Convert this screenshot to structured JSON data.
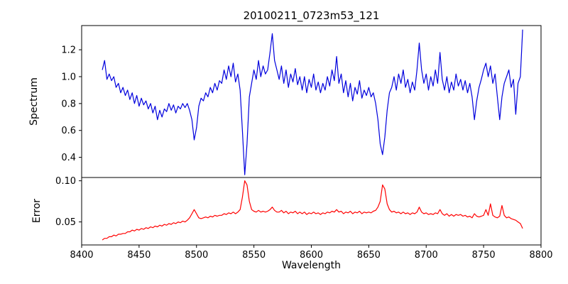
{
  "chart_data": {
    "type": "line",
    "title": "20100211_0723m53_121",
    "xlabel": "Wavelength",
    "x_start": 8418,
    "x_step": 2,
    "xlim": [
      8400,
      8800
    ],
    "x_ticks": [
      8400,
      8450,
      8500,
      8550,
      8600,
      8650,
      8700,
      8750,
      8800
    ],
    "grid": false,
    "legend": "none",
    "panels": [
      {
        "name": "spectrum",
        "ylabel": "Spectrum",
        "ylim": [
          0.25,
          1.38
        ],
        "y_ticks": [
          0.4,
          0.6,
          0.8,
          1.0,
          1.2
        ],
        "y_tick_labels": [
          "0.4",
          "0.6",
          "0.8",
          "1.0",
          "1.2"
        ],
        "color": "#0000dd",
        "notes": "noisy stellar spectrum, continuum near 1.0, Ca II triplet absorption lines near 8498, 8542, 8662",
        "values": [
          1.05,
          1.12,
          0.98,
          1.02,
          0.97,
          1.0,
          0.92,
          0.95,
          0.88,
          0.92,
          0.86,
          0.9,
          0.83,
          0.88,
          0.8,
          0.86,
          0.78,
          0.84,
          0.79,
          0.82,
          0.76,
          0.8,
          0.73,
          0.78,
          0.68,
          0.75,
          0.7,
          0.76,
          0.74,
          0.8,
          0.75,
          0.79,
          0.73,
          0.78,
          0.76,
          0.8,
          0.77,
          0.8,
          0.75,
          0.68,
          0.53,
          0.62,
          0.78,
          0.84,
          0.82,
          0.88,
          0.85,
          0.92,
          0.88,
          0.95,
          0.9,
          0.97,
          0.95,
          1.05,
          0.98,
          1.08,
          1.0,
          1.1,
          0.96,
          1.02,
          0.9,
          0.6,
          0.27,
          0.5,
          0.85,
          0.95,
          1.05,
          0.98,
          1.12,
          1.0,
          1.08,
          1.02,
          1.05,
          1.18,
          1.32,
          1.12,
          1.05,
          0.98,
          1.08,
          0.95,
          1.05,
          0.92,
          1.02,
          0.96,
          1.06,
          0.94,
          1.0,
          0.9,
          1.0,
          0.88,
          0.98,
          0.92,
          1.02,
          0.9,
          0.96,
          0.88,
          0.95,
          0.9,
          1.0,
          0.93,
          1.05,
          0.97,
          1.15,
          0.95,
          1.02,
          0.88,
          0.97,
          0.85,
          0.95,
          0.82,
          0.92,
          0.87,
          0.97,
          0.84,
          0.9,
          0.86,
          0.92,
          0.85,
          0.88,
          0.8,
          0.68,
          0.5,
          0.42,
          0.55,
          0.75,
          0.88,
          0.92,
          1.0,
          0.9,
          1.02,
          0.95,
          1.05,
          0.92,
          0.98,
          0.88,
          0.96,
          0.9,
          1.05,
          1.25,
          1.05,
          0.95,
          1.02,
          0.9,
          1.0,
          0.93,
          1.05,
          0.95,
          1.18,
          0.98,
          0.9,
          1.0,
          0.88,
          0.96,
          0.9,
          1.02,
          0.93,
          0.98,
          0.9,
          0.97,
          0.88,
          0.95,
          0.85,
          0.68,
          0.82,
          0.92,
          0.98,
          1.05,
          1.1,
          1.0,
          1.08,
          0.95,
          1.02,
          0.85,
          0.68,
          0.85,
          0.95,
          1.0,
          1.05,
          0.92,
          0.98,
          0.72,
          0.95,
          1.0,
          1.35
        ]
      },
      {
        "name": "error",
        "ylabel": "Error",
        "ylim": [
          0.022,
          0.104
        ],
        "y_ticks": [
          0.05,
          0.1
        ],
        "y_tick_labels": [
          "0.05",
          "0.10"
        ],
        "color": "#ff0000",
        "notes": "error rises from ~0.03 to ~0.06 plateau with spikes at the absorption lines 8542 and 8662",
        "values": [
          0.028,
          0.03,
          0.03,
          0.032,
          0.032,
          0.034,
          0.033,
          0.035,
          0.035,
          0.036,
          0.036,
          0.038,
          0.038,
          0.04,
          0.039,
          0.041,
          0.04,
          0.042,
          0.041,
          0.043,
          0.042,
          0.044,
          0.043,
          0.045,
          0.044,
          0.046,
          0.045,
          0.047,
          0.046,
          0.048,
          0.047,
          0.049,
          0.048,
          0.05,
          0.049,
          0.051,
          0.05,
          0.052,
          0.055,
          0.06,
          0.065,
          0.06,
          0.055,
          0.054,
          0.055,
          0.056,
          0.055,
          0.057,
          0.056,
          0.058,
          0.057,
          0.058,
          0.058,
          0.06,
          0.059,
          0.061,
          0.06,
          0.062,
          0.06,
          0.062,
          0.065,
          0.08,
          0.1,
          0.095,
          0.075,
          0.065,
          0.063,
          0.062,
          0.064,
          0.062,
          0.063,
          0.062,
          0.063,
          0.065,
          0.068,
          0.064,
          0.062,
          0.062,
          0.064,
          0.061,
          0.063,
          0.06,
          0.062,
          0.061,
          0.063,
          0.06,
          0.062,
          0.06,
          0.062,
          0.059,
          0.061,
          0.06,
          0.062,
          0.06,
          0.061,
          0.059,
          0.061,
          0.06,
          0.062,
          0.061,
          0.063,
          0.062,
          0.065,
          0.062,
          0.063,
          0.06,
          0.062,
          0.061,
          0.063,
          0.06,
          0.062,
          0.061,
          0.063,
          0.06,
          0.062,
          0.061,
          0.062,
          0.061,
          0.063,
          0.064,
          0.068,
          0.075,
          0.095,
          0.09,
          0.072,
          0.065,
          0.062,
          0.063,
          0.061,
          0.062,
          0.06,
          0.062,
          0.06,
          0.061,
          0.059,
          0.061,
          0.06,
          0.062,
          0.068,
          0.062,
          0.06,
          0.061,
          0.059,
          0.06,
          0.059,
          0.061,
          0.06,
          0.065,
          0.06,
          0.058,
          0.06,
          0.057,
          0.059,
          0.057,
          0.059,
          0.058,
          0.059,
          0.057,
          0.058,
          0.056,
          0.057,
          0.055,
          0.06,
          0.057,
          0.056,
          0.057,
          0.058,
          0.065,
          0.058,
          0.072,
          0.058,
          0.056,
          0.055,
          0.057,
          0.07,
          0.058,
          0.055,
          0.056,
          0.054,
          0.053,
          0.052,
          0.05,
          0.048,
          0.042
        ]
      }
    ]
  }
}
